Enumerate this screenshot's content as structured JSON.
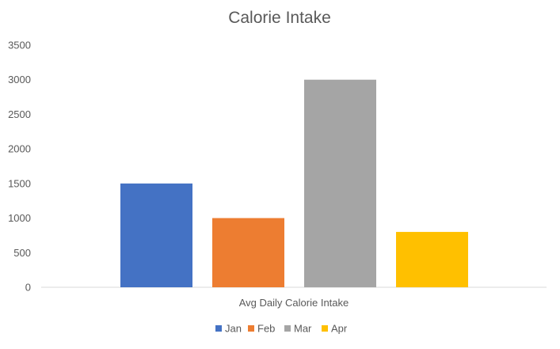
{
  "chart_data": {
    "type": "bar",
    "title": "Calorie Intake",
    "categories": [
      "Avg Daily Calorie Intake"
    ],
    "series": [
      {
        "name": "Jan",
        "values": [
          1500
        ],
        "color": "#4472C4"
      },
      {
        "name": "Feb",
        "values": [
          1000
        ],
        "color": "#ED7D31"
      },
      {
        "name": "Mar",
        "values": [
          3000
        ],
        "color": "#A5A5A5"
      },
      {
        "name": "Apr",
        "values": [
          800
        ],
        "color": "#FFC000"
      }
    ],
    "ylim": [
      0,
      3500
    ],
    "yticks": [
      "0",
      "500",
      "1000",
      "1500",
      "2000",
      "2500",
      "3000",
      "3500"
    ],
    "grid": false,
    "legend_position": "bottom"
  },
  "colors": {
    "text": "#595959",
    "axis": "#D9D9D9"
  }
}
